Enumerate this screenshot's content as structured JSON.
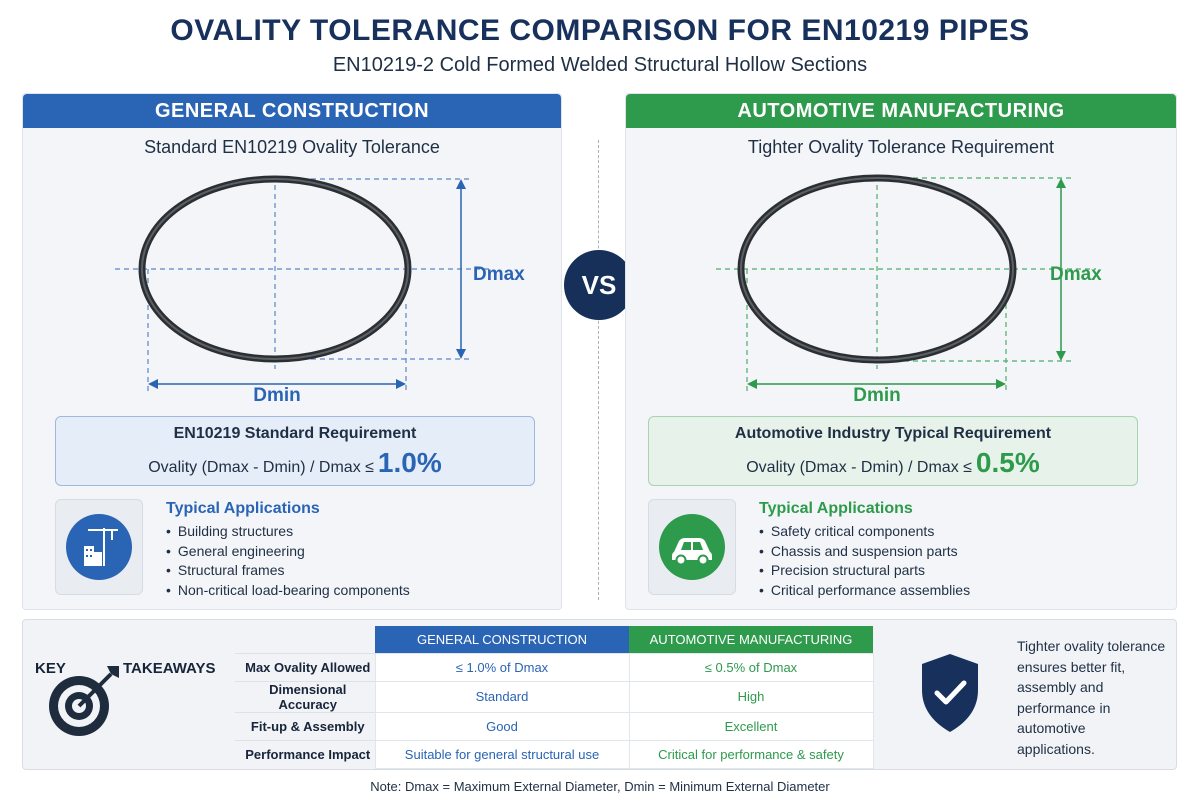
{
  "title": "OVALITY TOLERANCE COMPARISON FOR EN10219 PIPES",
  "subtitle": "EN10219-2 Cold Formed Welded Structural Hollow Sections",
  "vs": "VS",
  "left": {
    "header": "GENERAL CONSTRUCTION",
    "subheading": "Standard EN10219 Ovality Tolerance",
    "dmax_label": "Dmax",
    "dmin_label": "Dmin",
    "req_title": "EN10219 Standard Requirement",
    "req_formula": "Ovality (Dmax - Dmin) / Dmax ≤",
    "req_value": "1.0%",
    "icon": "construction-crane-icon",
    "apps_title": "Typical Applications",
    "apps": [
      "Building structures",
      "General engineering",
      "Structural frames",
      "Non-critical load-bearing components"
    ],
    "color": "#2a64b5"
  },
  "right": {
    "header": "AUTOMOTIVE MANUFACTURING",
    "subheading": "Tighter Ovality Tolerance Requirement",
    "dmax_label": "Dmax",
    "dmin_label": "Dmin",
    "req_title": "Automotive Industry Typical Requirement",
    "req_formula": "Ovality (Dmax - Dmin) / Dmax ≤",
    "req_value": "0.5%",
    "icon": "car-icon",
    "apps_title": "Typical Applications",
    "apps": [
      "Safety critical components",
      "Chassis and suspension parts",
      "Precision structural parts",
      "Critical performance assemblies"
    ],
    "color": "#2e9a4c"
  },
  "takeaways": {
    "label_left": "KEY",
    "label_right": "TAKEAWAYS",
    "icon": "target-arrow-icon",
    "col_general": "GENERAL CONSTRUCTION",
    "col_automotive": "AUTOMOTIVE MANUFACTURING",
    "rows": [
      {
        "label": "Max Ovality Allowed",
        "general": "≤ 1.0% of Dmax",
        "automotive": "≤ 0.5% of Dmax"
      },
      {
        "label": "Dimensional Accuracy",
        "general": "Standard",
        "automotive": "High"
      },
      {
        "label": "Fit-up & Assembly",
        "general": "Good",
        "automotive": "Excellent"
      },
      {
        "label": "Performance Impact",
        "general": "Suitable for general structural use",
        "automotive": "Critical for performance & safety"
      }
    ],
    "shield_icon": "shield-check-icon",
    "conclusion": "Tighter ovality tolerance ensures better fit, assembly and performance in automotive applications."
  },
  "note": "Note: Dmax = Maximum External Diameter, Dmin = Minimum External Diameter"
}
